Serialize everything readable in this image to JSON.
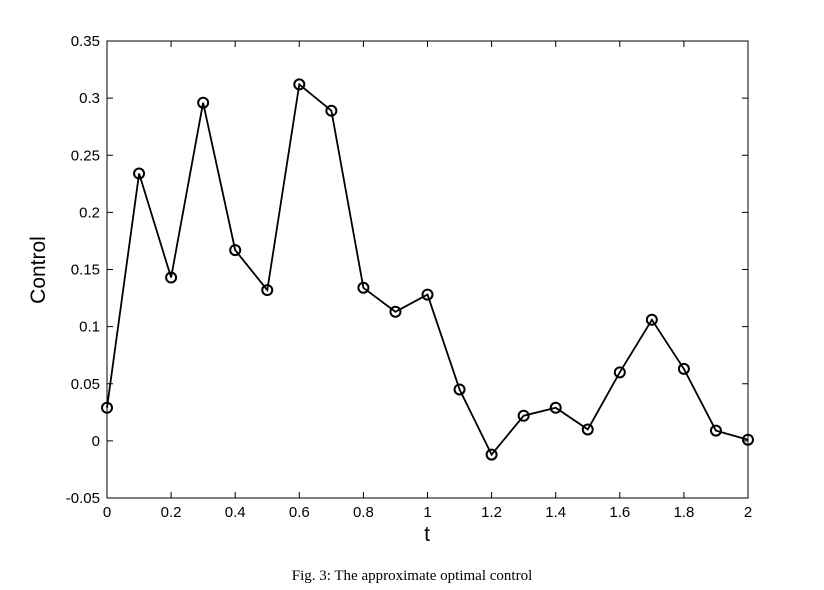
{
  "chart_data": {
    "type": "line",
    "title": "",
    "xlabel": "t",
    "ylabel": "Control",
    "xlim": [
      0,
      2
    ],
    "ylim": [
      -0.05,
      0.35
    ],
    "xticks": [
      0,
      0.2,
      0.4,
      0.6,
      0.8,
      1,
      1.2,
      1.4,
      1.6,
      1.8,
      2
    ],
    "xtick_labels": [
      "0",
      "0.2",
      "0.4",
      "0.6",
      "0.8",
      "1",
      "1.2",
      "1.4",
      "1.6",
      "1.8",
      "2"
    ],
    "yticks": [
      -0.05,
      0,
      0.05,
      0.1,
      0.15,
      0.2,
      0.25,
      0.3,
      0.35
    ],
    "ytick_labels": [
      "-0.05",
      "0",
      "0.05",
      "0.1",
      "0.15",
      "0.2",
      "0.25",
      "0.3",
      "0.35"
    ],
    "grid": false,
    "legend": "none",
    "marker": "circle",
    "line_color": "#000000",
    "x": [
      0,
      0.1,
      0.2,
      0.3,
      0.4,
      0.5,
      0.6,
      0.7,
      0.8,
      0.9,
      1.0,
      1.1,
      1.2,
      1.3,
      1.4,
      1.5,
      1.6,
      1.7,
      1.8,
      1.9,
      2.0
    ],
    "y": [
      0.029,
      0.234,
      0.143,
      0.296,
      0.167,
      0.132,
      0.312,
      0.289,
      0.134,
      0.113,
      0.128,
      0.045,
      -0.012,
      0.022,
      0.029,
      0.01,
      0.06,
      0.106,
      0.063,
      0.009,
      0.001
    ]
  },
  "caption": "Fig. 3: The approximate optimal control"
}
